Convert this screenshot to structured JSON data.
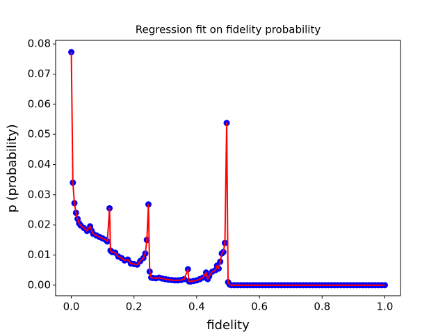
{
  "chart_data": {
    "type": "line",
    "title": "Regression fit on fidelity probability",
    "x_label": "fidelity",
    "y_label": "p (probability)",
    "marker_color": "#0000ff",
    "line_color": "#ff0000",
    "x": [
      0,
      0.005,
      0.01,
      0.015,
      0.02,
      0.025,
      0.03,
      0.04,
      0.05,
      0.06,
      0.065,
      0.07,
      0.08,
      0.09,
      0.1,
      0.11,
      0.115,
      0.122,
      0.125,
      0.13,
      0.14,
      0.15,
      0.16,
      0.17,
      0.18,
      0.19,
      0.2,
      0.21,
      0.22,
      0.23,
      0.236,
      0.241,
      0.246,
      0.25,
      0.255,
      0.26,
      0.27,
      0.28,
      0.29,
      0.3,
      0.31,
      0.32,
      0.33,
      0.34,
      0.35,
      0.36,
      0.372,
      0.375,
      0.38,
      0.39,
      0.4,
      0.41,
      0.42,
      0.43,
      0.435,
      0.44,
      0.45,
      0.46,
      0.465,
      0.47,
      0.475,
      0.48,
      0.485,
      0.49,
      0.4956,
      0.5,
      0.505,
      0.51,
      0.52,
      0.53,
      0.54,
      0.55,
      0.56,
      0.57,
      0.58,
      0.59,
      0.6,
      0.61,
      0.62,
      0.63,
      0.64,
      0.65,
      0.66,
      0.67,
      0.68,
      0.69,
      0.7,
      0.71,
      0.72,
      0.73,
      0.74,
      0.75,
      0.76,
      0.77,
      0.78,
      0.79,
      0.8,
      0.81,
      0.82,
      0.83,
      0.84,
      0.85,
      0.86,
      0.87,
      0.88,
      0.89,
      0.9,
      0.91,
      0.92,
      0.93,
      0.94,
      0.95,
      0.96,
      0.97,
      0.98,
      0.99,
      1.0
    ],
    "values": [
      0.0773,
      0.034,
      0.0272,
      0.024,
      0.022,
      0.0205,
      0.0198,
      0.019,
      0.018,
      0.0195,
      0.018,
      0.017,
      0.0165,
      0.016,
      0.0155,
      0.015,
      0.0145,
      0.0255,
      0.0115,
      0.011,
      0.0108,
      0.0095,
      0.009,
      0.0082,
      0.0085,
      0.0072,
      0.007,
      0.0068,
      0.008,
      0.009,
      0.0105,
      0.015,
      0.0268,
      0.0045,
      0.0025,
      0.0024,
      0.0023,
      0.0025,
      0.0022,
      0.002,
      0.0018,
      0.0017,
      0.0016,
      0.0016,
      0.0017,
      0.002,
      0.0053,
      0.0013,
      0.0012,
      0.0014,
      0.0016,
      0.002,
      0.0025,
      0.0042,
      0.002,
      0.003,
      0.0045,
      0.005,
      0.0065,
      0.0055,
      0.0078,
      0.0105,
      0.011,
      0.014,
      0.0538,
      0.001,
      0.0002,
      0,
      0,
      0,
      0,
      0,
      0,
      0,
      0,
      0,
      0,
      0,
      0,
      0,
      0,
      0,
      0,
      0,
      0,
      0,
      0,
      0,
      0,
      0,
      0,
      0,
      0,
      0,
      0,
      0,
      0,
      0,
      0,
      0,
      0,
      0,
      0,
      0,
      0,
      0,
      0,
      0,
      0,
      0,
      0,
      0,
      0,
      0,
      0,
      0,
      0
    ],
    "xlim": [
      -0.05,
      1.05
    ],
    "xticks": [
      {
        "value": 0,
        "label": "0.0"
      },
      0.2,
      0.4,
      0.6,
      0.8,
      {
        "value": 1,
        "label": "1.0"
      }
    ],
    "ylim": [
      -0.0035,
      0.0812
    ],
    "yticks": [
      {
        "value": 0,
        "label": "0.00"
      },
      0.01,
      0.02,
      0.03,
      0.04,
      0.05,
      0.06,
      0.07,
      0.08
    ]
  }
}
